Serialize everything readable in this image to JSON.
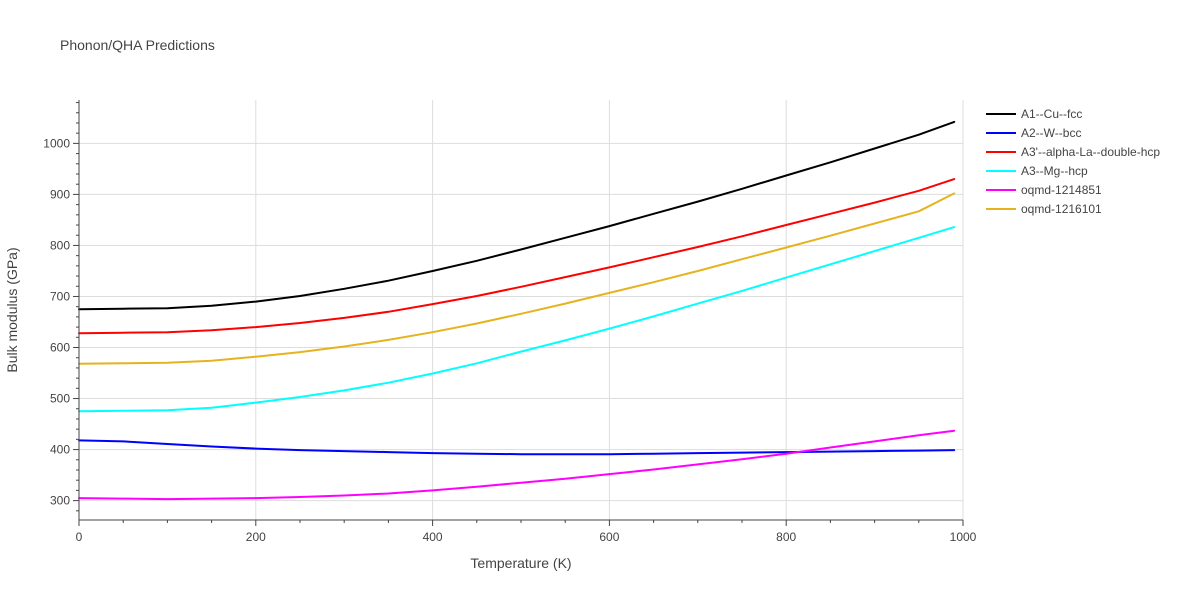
{
  "chart_data": {
    "type": "line",
    "title": "Phonon/QHA Predictions",
    "xlabel": "Temperature (K)",
    "ylabel": "Bulk modulus (GPa)",
    "xlim": [
      0,
      1000
    ],
    "ylim": [
      262,
      1085
    ],
    "xticks": [
      0,
      200,
      400,
      600,
      800,
      1000
    ],
    "yticks": [
      300,
      400,
      500,
      600,
      700,
      800,
      900,
      1000
    ],
    "grid": true,
    "legend_position": "right",
    "x": [
      0,
      50,
      100,
      150,
      200,
      250,
      300,
      350,
      400,
      450,
      500,
      550,
      600,
      650,
      700,
      750,
      800,
      850,
      900,
      950,
      990
    ],
    "series": [
      {
        "name": "A1--Cu--fcc",
        "color": "#000000",
        "values": [
          675,
          676,
          677,
          682,
          690,
          701,
          715,
          731,
          750,
          770,
          792,
          815,
          838,
          862,
          886,
          911,
          937,
          963,
          990,
          1017,
          1042
        ]
      },
      {
        "name": "A2--W--bcc",
        "color": "#0000ff",
        "values": [
          418,
          416,
          411,
          406,
          402,
          399,
          397,
          395,
          393,
          392,
          391,
          391,
          391,
          392,
          393,
          394,
          395,
          396,
          397,
          398,
          399
        ]
      },
      {
        "name": "A3'--alpha-La--double-hcp",
        "color": "#ff0000",
        "values": [
          628,
          629,
          630,
          634,
          640,
          648,
          658,
          670,
          685,
          701,
          719,
          738,
          757,
          777,
          797,
          818,
          840,
          862,
          884,
          907,
          930
        ]
      },
      {
        "name": "A3--Mg--hcp",
        "color": "#00ffff",
        "values": [
          475,
          476,
          477,
          482,
          492,
          503,
          516,
          531,
          549,
          569,
          592,
          614,
          637,
          661,
          686,
          711,
          737,
          763,
          789,
          815,
          836
        ]
      },
      {
        "name": "oqmd-1214851",
        "color": "#ff00ff",
        "values": [
          305,
          304,
          303,
          304,
          305,
          307,
          310,
          314,
          320,
          327,
          335,
          343,
          352,
          361,
          371,
          381,
          392,
          404,
          416,
          428,
          437
        ]
      },
      {
        "name": "oqmd-1216101",
        "color": "#e6b31e",
        "values": [
          568,
          569,
          570,
          574,
          582,
          591,
          602,
          615,
          630,
          647,
          666,
          686,
          707,
          728,
          750,
          773,
          796,
          819,
          843,
          867,
          902
        ]
      }
    ]
  }
}
